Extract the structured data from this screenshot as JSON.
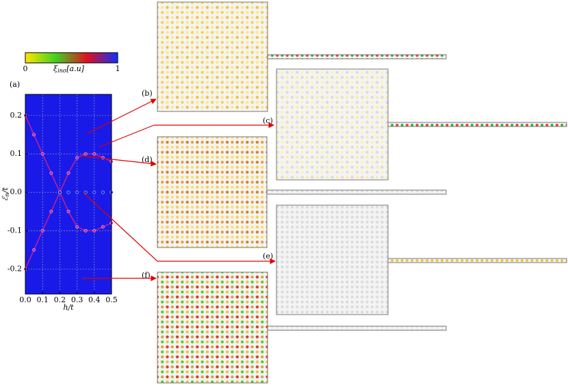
{
  "chart_data": {
    "type": "scatter",
    "panel_label": "(a)",
    "xlabel": {
      "symbol": "h",
      "rest": "/t"
    },
    "ylabel": {
      "symbol": "ℰ",
      "subscript": "n",
      "rest": "/t"
    },
    "x": [
      0,
      0.05,
      0.1,
      0.15,
      0.2,
      0.25,
      0.3,
      0.35,
      0.4,
      0.45,
      0.5
    ],
    "series": [
      {
        "color": "#d0208a",
        "values": [
          0.2,
          0.15,
          0.1,
          0.05,
          0,
          0.05,
          0.09,
          0.1,
          0.1,
          0.09,
          0.08
        ]
      },
      {
        "color": "#d0208a",
        "values": [
          -0.2,
          -0.15,
          -0.1,
          -0.05,
          0,
          -0.05,
          -0.09,
          -0.1,
          -0.1,
          -0.09,
          -0.08
        ]
      },
      {
        "color": "#1020e0",
        "values": [
          null,
          null,
          null,
          null,
          0,
          0,
          0,
          0,
          0,
          0,
          0
        ]
      }
    ],
    "xlim": [
      0,
      0.5
    ],
    "ylim": [
      -0.265,
      0.255
    ],
    "xticks": [
      {
        "value": 0,
        "label": "0.0"
      },
      0.1,
      0.2,
      0.3,
      0.4,
      0.5
    ],
    "yticks": [
      0.2,
      0.1,
      {
        "value": 0,
        "label": "0.0"
      },
      -0.1,
      -0.2
    ],
    "grid": true,
    "colorbar": {
      "symbol": "ξ",
      "subscript": "inσ",
      "unit": "[a.u]",
      "ticks": [
        0,
        1
      ],
      "colors": [
        "#ffe600",
        "#40d020",
        "#e01020",
        "#1030ff"
      ]
    }
  },
  "panels": [
    {
      "label": "(b)"
    },
    {
      "label": "(c)"
    },
    {
      "label": "(d)"
    },
    {
      "label": "(e)"
    },
    {
      "label": "(f)"
    }
  ]
}
